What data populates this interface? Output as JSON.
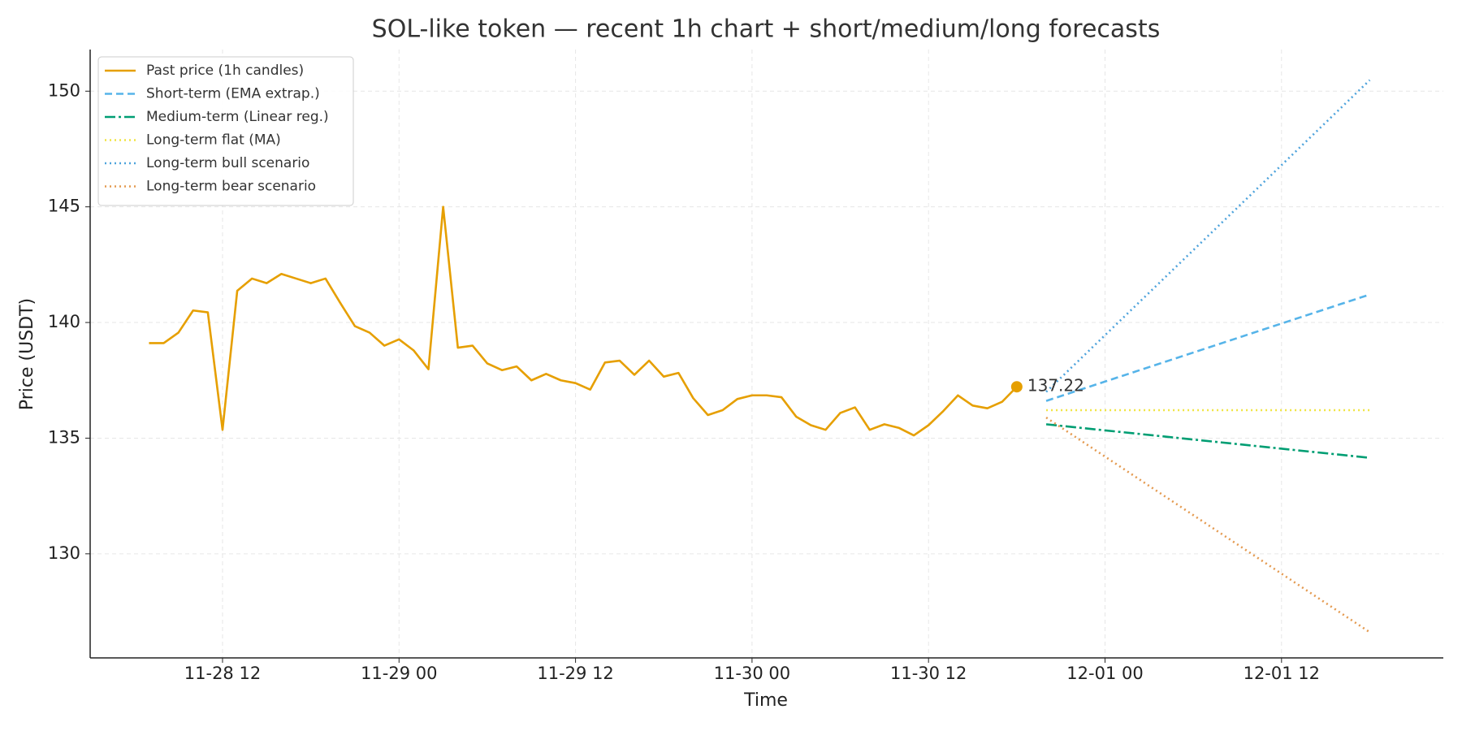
{
  "chart_data": {
    "type": "line",
    "title": "SOL-like token — recent 1h chart + short/medium/long forecasts",
    "x_label": "Time",
    "y_label": "Price (USDT)",
    "xlim": [
      "11-28 03",
      "12-01 23"
    ],
    "xticks": [
      "11-28 12",
      "11-29 00",
      "11-29 12",
      "11-30 00",
      "11-30 12",
      "12-01 00",
      "12-01 12"
    ],
    "ylim": [
      125.5,
      151.8
    ],
    "yticks": [
      130,
      135,
      140,
      145,
      150
    ],
    "grid": true,
    "legend": "upper left",
    "highlight_last": true,
    "series": [
      {
        "name": "Past price (1h candles)",
        "color": "#e69f00",
        "style": "solid",
        "x": [
          "11-28 07",
          "11-28 08",
          "11-28 09",
          "11-28 10",
          "11-28 11",
          "11-28 12",
          "11-28 13",
          "11-28 14",
          "11-28 15",
          "11-28 16",
          "11-28 17",
          "11-28 18",
          "11-28 19",
          "11-28 20",
          "11-28 21",
          "11-28 22",
          "11-28 23",
          "11-29 00",
          "11-29 01",
          "11-29 02",
          "11-29 03",
          "11-29 04",
          "11-29 05",
          "11-29 06",
          "11-29 07",
          "11-29 08",
          "11-29 09",
          "11-29 10",
          "11-29 11",
          "11-29 12",
          "11-29 13",
          "11-29 14",
          "11-29 15",
          "11-29 16",
          "11-29 17",
          "11-29 18",
          "11-29 19",
          "11-29 20",
          "11-29 21",
          "11-29 22",
          "11-29 23",
          "11-30 00",
          "11-30 01",
          "11-30 02",
          "11-30 03",
          "11-30 04",
          "11-30 05",
          "11-30 06",
          "11-30 07",
          "11-30 08",
          "11-30 09",
          "11-30 10",
          "11-30 11",
          "11-30 12",
          "11-30 13",
          "11-30 14",
          "11-30 15",
          "11-30 16",
          "11-30 17",
          "11-30 18"
        ],
        "values": [
          139.11,
          139.11,
          139.56,
          140.52,
          140.44,
          135.36,
          141.37,
          141.9,
          141.7,
          142.1,
          141.9,
          141.7,
          141.9,
          140.85,
          139.84,
          139.56,
          139.0,
          139.27,
          138.79,
          137.98,
          145.0,
          138.91,
          139.0,
          138.23,
          137.94,
          138.1,
          137.5,
          137.78,
          137.5,
          137.38,
          137.1,
          138.27,
          138.35,
          137.74,
          138.35,
          137.66,
          137.82,
          136.73,
          136.0,
          136.21,
          136.69,
          136.85,
          136.85,
          136.77,
          135.93,
          135.56,
          135.36,
          136.09,
          136.33,
          135.36,
          135.6,
          135.44,
          135.12,
          135.56,
          136.17,
          136.85,
          136.41,
          136.29,
          136.57,
          137.22
        ]
      },
      {
        "name": "Short-term (EMA extrap.)",
        "color": "#56b4e9",
        "style": "dashed",
        "x": [
          "11-30 20",
          "12-01 18"
        ],
        "values": [
          136.61,
          141.21
        ]
      },
      {
        "name": "Medium-term (Linear reg.)",
        "color": "#009e73",
        "style": "dashdot",
        "x": [
          "11-30 20",
          "12-01 18"
        ],
        "values": [
          135.6,
          134.15
        ]
      },
      {
        "name": "Long-term flat (MA)",
        "color": "#f0e442",
        "style": "dotted",
        "x": [
          "11-30 20",
          "12-01 18"
        ],
        "values": [
          136.21,
          136.21
        ]
      },
      {
        "name": "Long-term bull scenario",
        "color": "#4ea3dc",
        "style": "dotted",
        "x": [
          "11-30 20",
          "12-01 18"
        ],
        "values": [
          137.0,
          150.48
        ]
      },
      {
        "name": "Long-term bear scenario",
        "color": "#e49a50",
        "style": "dotted",
        "x": [
          "11-30 20",
          "12-01 18"
        ],
        "values": [
          135.89,
          126.61
        ]
      }
    ]
  }
}
